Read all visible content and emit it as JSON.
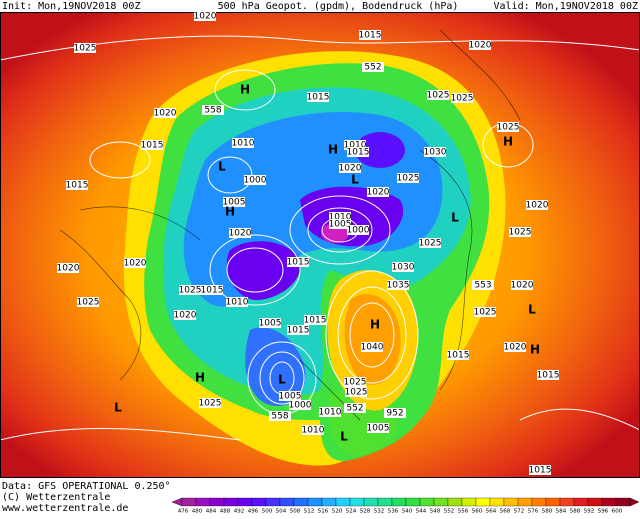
{
  "header": {
    "left": "Init: Mon,19NOV2018 00Z",
    "center": "500 hPa Geopot. (gpdm), Bodendruck (hPa)",
    "right": "Valid: Mon,19NOV2018 00Z"
  },
  "footer": {
    "data": "Data: GFS OPERATIONAL 0.250°",
    "copyright": "(C) Wetterzentrale",
    "url": "www.wetterzentrale.de"
  },
  "colorbar": {
    "ticks": [
      476,
      480,
      484,
      488,
      492,
      496,
      500,
      504,
      508,
      512,
      516,
      520,
      524,
      528,
      532,
      536,
      540,
      544,
      548,
      552,
      556,
      560,
      564,
      568,
      572,
      576,
      580,
      584,
      588,
      592,
      596,
      600
    ],
    "colors": [
      "#a020a0",
      "#9a10c0",
      "#8a00d0",
      "#7a00e0",
      "#6a00f0",
      "#5a10ff",
      "#4a30ff",
      "#3050ff",
      "#2070ff",
      "#2090ff",
      "#20b0ff",
      "#20d0ff",
      "#20e0e0",
      "#20e0b0",
      "#20e090",
      "#20e060",
      "#30e040",
      "#50e030",
      "#70e020",
      "#a0e010",
      "#d0f000",
      "#ffff00",
      "#ffe000",
      "#ffc000",
      "#ffa000",
      "#ff8000",
      "#ff6000",
      "#f04020",
      "#e02020",
      "#d01010",
      "#b00020",
      "#900020"
    ]
  },
  "isobar_labels": [
    "1020",
    "1025",
    "1015",
    "552",
    "1020",
    "H",
    "1015",
    "1025",
    "1025",
    "1020",
    "558",
    "1025",
    "1015",
    "1010",
    "1010",
    "H",
    "1015",
    "1030",
    "H",
    "L",
    "1020",
    "1025",
    "1015",
    "1000",
    "L",
    "1020",
    "1005",
    "H",
    "1010",
    "1005",
    "1000",
    "L",
    "1020",
    "1020",
    "1025",
    "1025",
    "1020",
    "1020",
    "1015",
    "1030",
    "1015",
    "1025",
    "1035",
    "553",
    "1020",
    "1010",
    "1025",
    "1025",
    "1020",
    "1005",
    "1015",
    "L",
    "H",
    "1015",
    "1040",
    "1020",
    "H",
    "1015",
    "1025",
    "L",
    "H",
    "1015",
    "1025",
    "1005",
    "1025",
    "1000",
    "552",
    "952",
    "L",
    "558",
    "1010",
    "1005",
    "1010",
    "L",
    "1015"
  ]
}
